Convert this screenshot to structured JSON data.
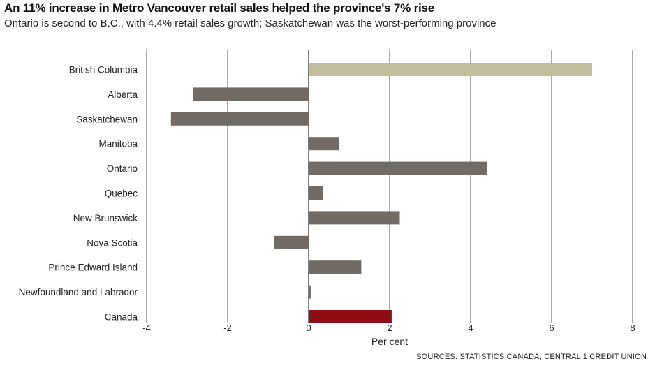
{
  "header": {
    "title": "An 11% increase in Metro Vancouver retail sales helped the province's 7% rise",
    "subtitle": "Ontario is second to B.C., with 4.4% retail sales growth; Saskatchewan was the worst-performing province"
  },
  "footer": {
    "source": "SOURCES: STATISTICS CANADA, CENTRAL 1 CREDIT UNION"
  },
  "colors": {
    "highlight": "#c2bd9c",
    "default": "#726a64",
    "national": "#8e0e14",
    "grid": "#2a2a2a"
  },
  "chart_data": {
    "type": "bar",
    "orientation": "horizontal",
    "title": "An 11% increase in Metro Vancouver retail sales helped the province's 7% rise",
    "subtitle": "Ontario is second to B.C., with 4.4% retail sales growth; Saskatchewan was the worst-performing province",
    "xlabel": "Per cent",
    "ylabel": "",
    "xlim": [
      -4,
      8
    ],
    "xticks": [
      -4,
      -2,
      0,
      2,
      4,
      6,
      8
    ],
    "grid": true,
    "categories": [
      "British Columbia",
      "Alberta",
      "Saskatchewan",
      "Manitoba",
      "Ontario",
      "Quebec",
      "New Brunswick",
      "Nova Scotia",
      "Prince Edward Island",
      "Newfoundland and Labrador",
      "Canada"
    ],
    "values": [
      7.0,
      -2.85,
      -3.4,
      0.75,
      4.4,
      0.35,
      2.25,
      -0.85,
      1.3,
      0.05,
      2.05
    ],
    "bar_colors": [
      "highlight",
      "default",
      "default",
      "default",
      "default",
      "default",
      "default",
      "default",
      "default",
      "default",
      "national"
    ],
    "source": "SOURCES: STATISTICS CANADA, CENTRAL 1 CREDIT UNION"
  }
}
